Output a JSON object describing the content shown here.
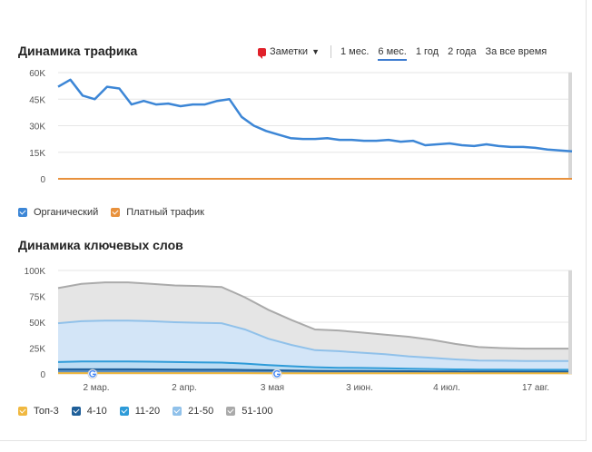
{
  "traffic": {
    "title": "Динамика трафика",
    "notes_label": "Заметки",
    "ranges": [
      "1 мес.",
      "6 мес.",
      "1 год",
      "2 года",
      "За все время"
    ],
    "active_range": "6 мес.",
    "legend": [
      {
        "label": "Органический",
        "color": "#3c86d6"
      },
      {
        "label": "Платный трафик",
        "color": "#e8913c"
      }
    ]
  },
  "keywords": {
    "title": "Динамика ключевых слов",
    "legend": [
      {
        "label": "Топ-3",
        "color": "#f0b840"
      },
      {
        "label": "4-10",
        "color": "#1f5f99"
      },
      {
        "label": "11-20",
        "color": "#2e9bd8"
      },
      {
        "label": "21-50",
        "color": "#90c1ea"
      },
      {
        "label": "51-100",
        "color": "#aaaaaa"
      }
    ]
  },
  "chart_data": [
    {
      "type": "line",
      "title": "Динамика трафика",
      "ylim": [
        0,
        60000
      ],
      "yticks": [
        "0",
        "15K",
        "30K",
        "45K",
        "60K"
      ],
      "series": [
        {
          "name": "Органический",
          "color": "#3c86d6",
          "x": [
            0,
            1,
            2,
            3,
            4,
            5,
            6,
            7,
            8,
            9,
            10,
            11,
            12,
            13,
            14,
            15,
            16,
            17,
            18,
            19,
            20,
            21,
            22,
            23,
            24,
            25,
            26,
            27,
            28,
            29,
            30,
            31,
            32,
            33,
            34,
            35,
            36,
            37,
            38,
            39,
            40,
            41,
            42
          ],
          "values": [
            52000,
            56000,
            47000,
            45000,
            52000,
            51000,
            42000,
            44000,
            42000,
            42500,
            41000,
            42000,
            42000,
            44000,
            45000,
            35000,
            30000,
            27000,
            25000,
            23000,
            22500,
            22500,
            23000,
            22000,
            22000,
            21500,
            21500,
            22000,
            21000,
            21500,
            19000,
            19500,
            20000,
            19000,
            18500,
            19500,
            18500,
            18000,
            18000,
            17500,
            16500,
            16000,
            15500
          ]
        },
        {
          "name": "Платный трафик",
          "color": "#e8913c",
          "x": [
            0,
            42
          ],
          "values": [
            0,
            0
          ]
        }
      ]
    },
    {
      "type": "area",
      "title": "Динамика ключевых слов",
      "ylim": [
        0,
        100000
      ],
      "yticks": [
        "0",
        "25K",
        "50K",
        "75K",
        "100K"
      ],
      "categories": [
        "2 мар.",
        "2 апр.",
        "3 мая",
        "3 июн.",
        "4 июл.",
        "17 авг."
      ],
      "x": [
        0,
        1,
        2,
        3,
        4,
        5,
        6,
        7,
        8,
        9,
        10,
        11,
        12,
        13,
        14,
        15,
        16,
        17,
        18,
        19,
        20,
        21,
        22
      ],
      "series": [
        {
          "name": "51-100",
          "color": "#aaaaaa",
          "values": [
            83000,
            87000,
            88500,
            88500,
            87000,
            85500,
            85000,
            84000,
            74000,
            62000,
            52000,
            43000,
            42000,
            40000,
            38000,
            36000,
            33000,
            29000,
            26000,
            25000,
            24500,
            24500,
            24500
          ]
        },
        {
          "name": "21-50",
          "color": "#90c1ea",
          "values": [
            49000,
            51000,
            51500,
            51500,
            51000,
            50000,
            49500,
            49000,
            43000,
            34000,
            28000,
            23000,
            22000,
            20500,
            19000,
            17000,
            15500,
            14000,
            13000,
            12800,
            12500,
            12500,
            12500
          ]
        },
        {
          "name": "11-20",
          "color": "#2e9bd8",
          "values": [
            11500,
            12000,
            12000,
            12000,
            11800,
            11500,
            11200,
            11000,
            10000,
            8500,
            7500,
            6500,
            6000,
            5800,
            5500,
            5000,
            4700,
            4400,
            4200,
            4100,
            4000,
            4000,
            4000
          ]
        },
        {
          "name": "4-10",
          "color": "#1f5f99",
          "values": [
            4500,
            4500,
            4500,
            4500,
            4400,
            4300,
            4200,
            4100,
            3900,
            3600,
            3300,
            3000,
            2900,
            2800,
            2700,
            2600,
            2500,
            2400,
            2300,
            2300,
            2200,
            2200,
            2200
          ]
        },
        {
          "name": "Топ-3",
          "color": "#f0b840",
          "values": [
            800,
            800,
            800,
            800,
            800,
            800,
            800,
            800,
            750,
            700,
            650,
            600,
            600,
            600,
            600,
            600,
            600,
            600,
            600,
            600,
            600,
            600,
            600
          ]
        }
      ]
    }
  ]
}
